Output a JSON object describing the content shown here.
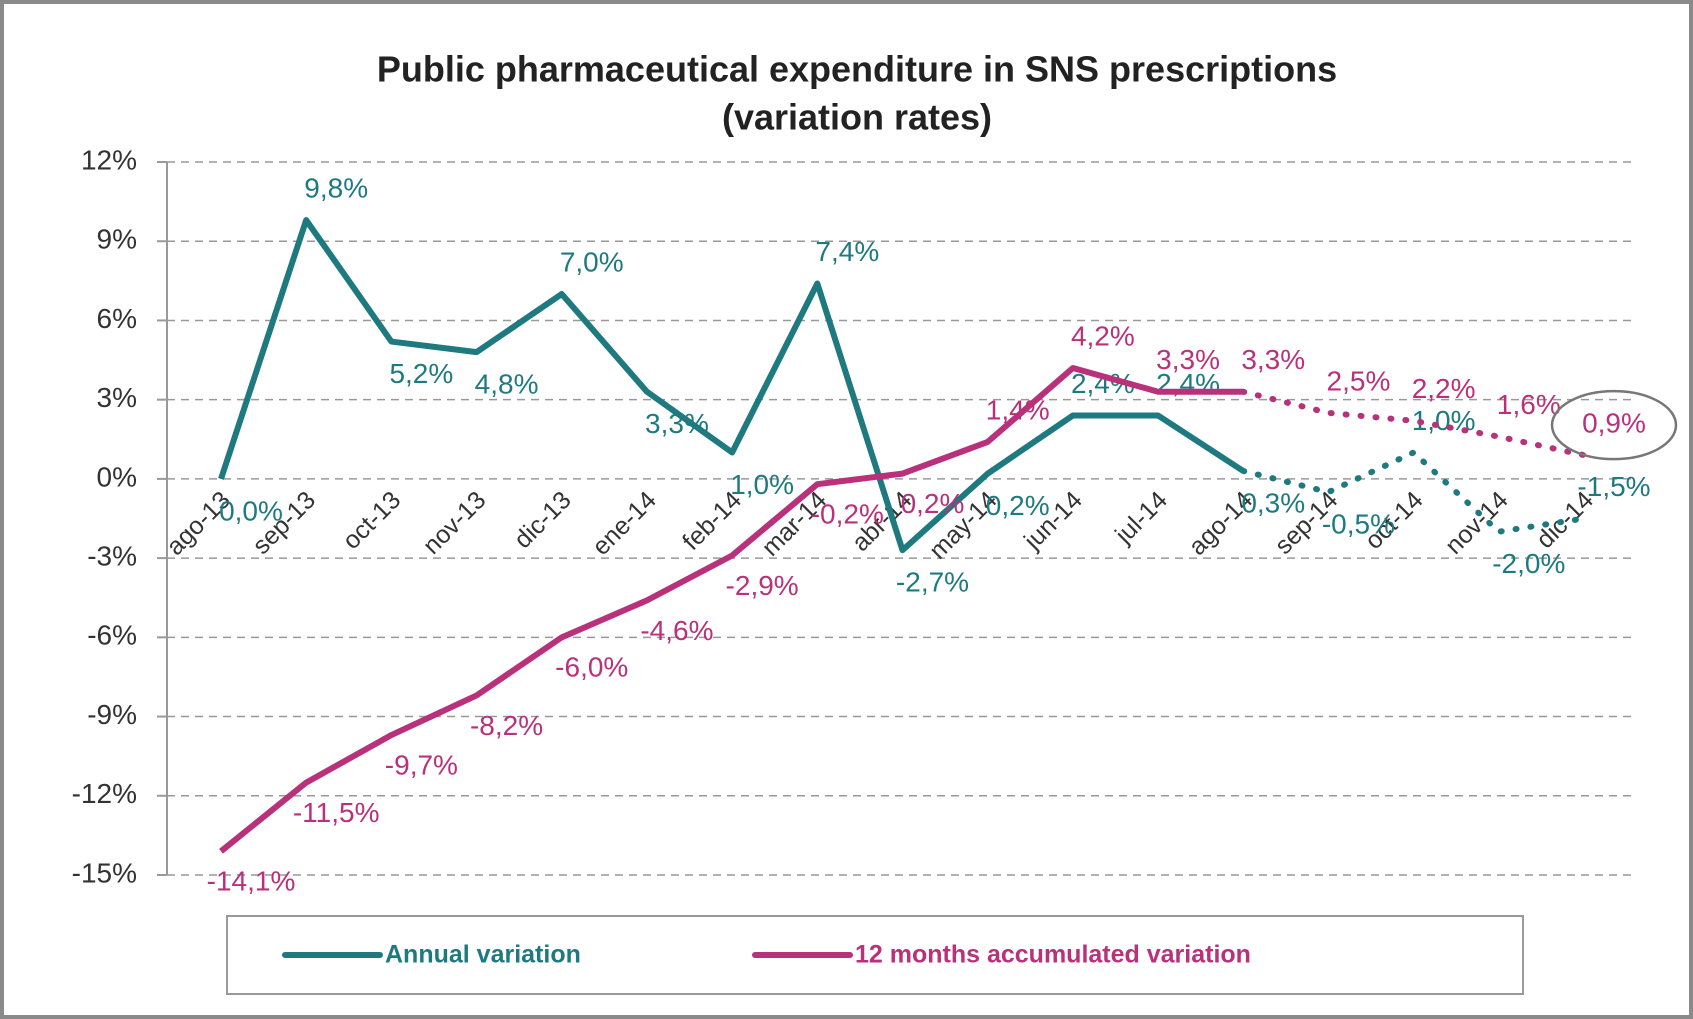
{
  "chart_data": {
    "type": "line",
    "title": "Public pharmaceutical expenditure in SNS prescriptions",
    "subtitle": "(variation rates)",
    "categories": [
      "ago-13",
      "sep-13",
      "oct-13",
      "nov-13",
      "dic-13",
      "ene-14",
      "feb-14",
      "mar-14",
      "abr-14",
      "may-14",
      "jun-14",
      "jul-14",
      "ago-14",
      "sep-14",
      "oct-14",
      "nov-14",
      "dic-14"
    ],
    "series": [
      {
        "name": "Annual variation",
        "color": "#1f7a80",
        "dotted_from_index": 12,
        "values": [
          0.0,
          9.8,
          5.2,
          4.8,
          7.0,
          3.3,
          1.0,
          7.4,
          -2.7,
          0.2,
          2.4,
          2.4,
          0.3,
          -0.5,
          1.0,
          -2.0,
          -1.5
        ],
        "value_labels": [
          "0,0%",
          "9,8%",
          "5,2%",
          "4,8%",
          "7,0%",
          "3,3%",
          "1,0%",
          "7,4%",
          "-2,7%",
          "0,2%",
          "2,4%",
          "2,4%",
          "0,3%",
          "-0,5%",
          "1,0%",
          "-2,0%",
          "-1,5%"
        ]
      },
      {
        "name": "12 months accumulated variation",
        "color": "#b8317a",
        "dotted_from_index": 12,
        "values": [
          -14.1,
          -11.5,
          -9.7,
          -8.2,
          -6.0,
          -4.6,
          -2.9,
          -0.2,
          0.2,
          1.4,
          4.2,
          3.3,
          3.3,
          2.5,
          2.2,
          1.6,
          0.9
        ],
        "value_labels": [
          "-14,1%",
          "-11,5%",
          "-9,7%",
          "-8,2%",
          "-6,0%",
          "-4,6%",
          "-2,9%",
          "-0,2%",
          "0,2%",
          "1,4%",
          "4,2%",
          "3,3%",
          "3,3%",
          "2,5%",
          "2,2%",
          "1,6%",
          "0,9%"
        ]
      }
    ],
    "ylim": [
      -15,
      12
    ],
    "yticks": [
      {
        "value": -15,
        "label": "-15%"
      },
      {
        "value": -12,
        "label": "-12%"
      },
      {
        "value": -9,
        "label": "-9%"
      },
      {
        "value": -6,
        "label": "-6%"
      },
      {
        "value": -3,
        "label": "-3%"
      },
      {
        "value": 0,
        "label": "0%"
      },
      {
        "value": 3,
        "label": "3%"
      },
      {
        "value": 6,
        "label": "6%"
      },
      {
        "value": 9,
        "label": "9%"
      },
      {
        "value": 12,
        "label": "12%"
      }
    ],
    "grid": true,
    "legend": "bottom"
  }
}
